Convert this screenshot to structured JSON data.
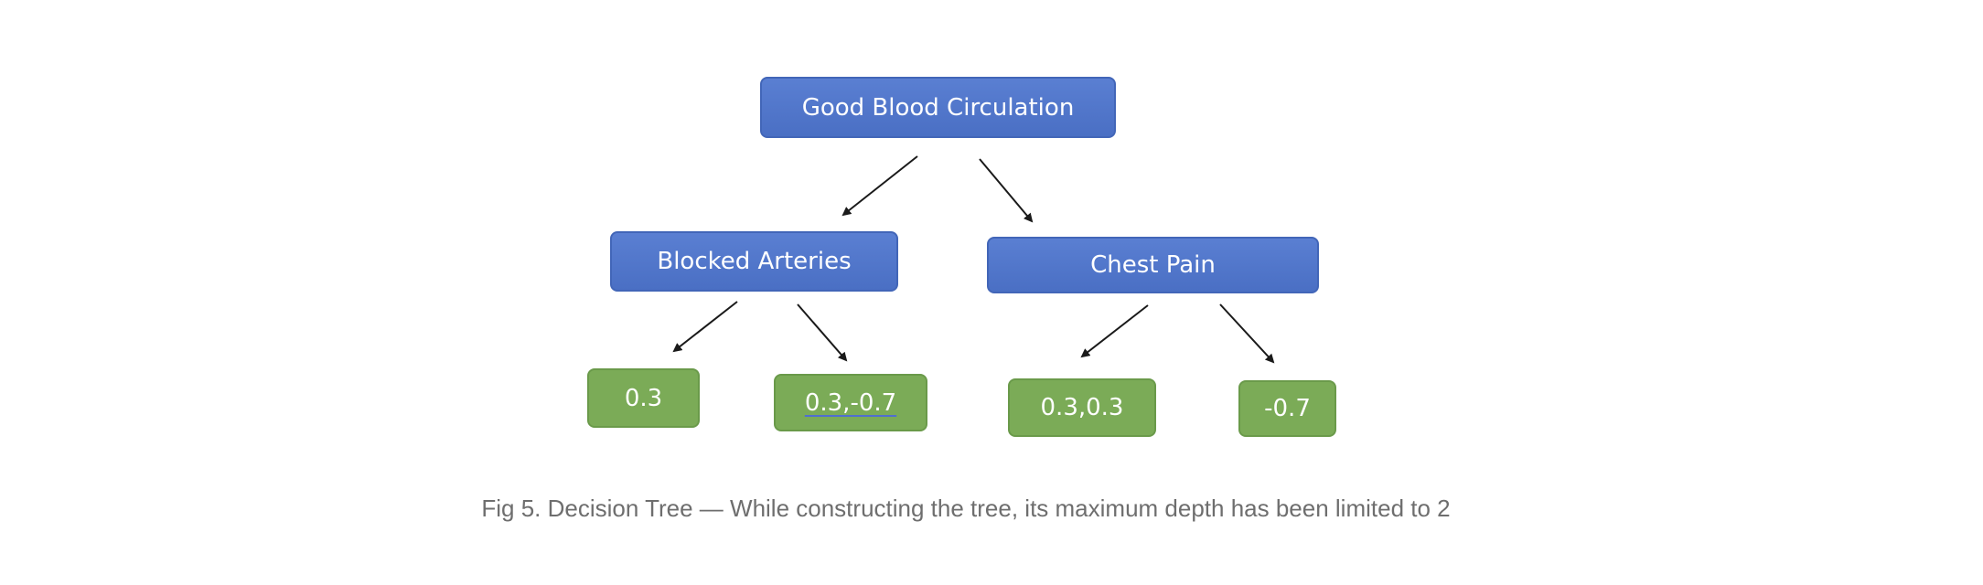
{
  "tree": {
    "root": {
      "label": "Good Blood Circulation"
    },
    "level1": [
      {
        "label": "Blocked Arteries"
      },
      {
        "label": "Chest Pain"
      }
    ],
    "leaves": [
      {
        "label": "0.3"
      },
      {
        "label": "0.3,-0.7"
      },
      {
        "label": "0.3,0.3"
      },
      {
        "label": "-0.7"
      }
    ]
  },
  "caption": "Fig 5. Decision Tree — While constructing the tree, its maximum depth has been limited to 2",
  "colors": {
    "decision_node": "#4f72c8",
    "leaf_node": "#7bab57",
    "arrow": "#1a1a1a",
    "caption_text": "#6e6e6e"
  }
}
